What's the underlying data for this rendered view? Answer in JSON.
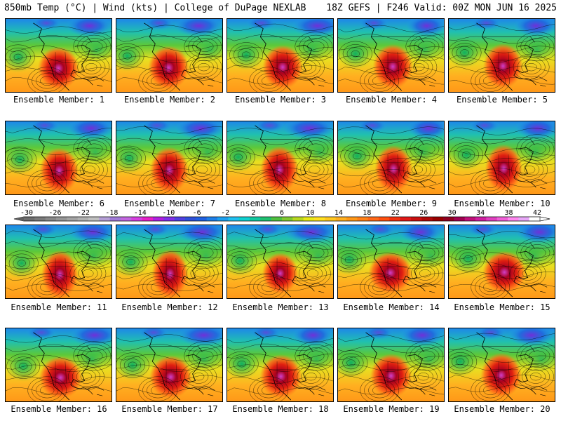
{
  "header": {
    "left": "850mb Temp (°C) | Wind (kts) | College of DuPage NEXLAB",
    "right": "18Z GEFS | F246 Valid: 00Z MON JUN 16 2025"
  },
  "members": [
    {
      "label": "Ensemble Member: 1"
    },
    {
      "label": "Ensemble Member: 2"
    },
    {
      "label": "Ensemble Member: 3"
    },
    {
      "label": "Ensemble Member: 4"
    },
    {
      "label": "Ensemble Member: 5"
    },
    {
      "label": "Ensemble Member: 6"
    },
    {
      "label": "Ensemble Member: 7"
    },
    {
      "label": "Ensemble Member: 8"
    },
    {
      "label": "Ensemble Member: 9"
    },
    {
      "label": "Ensemble Member: 10"
    },
    {
      "label": "Ensemble Member: 11"
    },
    {
      "label": "Ensemble Member: 12"
    },
    {
      "label": "Ensemble Member: 13"
    },
    {
      "label": "Ensemble Member: 14"
    },
    {
      "label": "Ensemble Member: 15"
    },
    {
      "label": "Ensemble Member: 16"
    },
    {
      "label": "Ensemble Member: 17"
    },
    {
      "label": "Ensemble Member: 18"
    },
    {
      "label": "Ensemble Member: 19"
    },
    {
      "label": "Ensemble Member: 20"
    }
  ],
  "colorbar": {
    "labels": [
      "-30",
      "-26",
      "-22",
      "-18",
      "-14",
      "-10",
      "-6",
      "-2",
      "2",
      "6",
      "10",
      "14",
      "18",
      "22",
      "26",
      "30",
      "34",
      "38",
      "42"
    ],
    "colors": [
      "#6e6e6e",
      "#7a7a7a",
      "#888888",
      "#969696",
      "#a4a4a4",
      "#b2b2b2",
      "#c0c0c0",
      "#b59fd6",
      "#a07ad8",
      "#c266e0",
      "#d63fe0",
      "#e620c8",
      "#b020e0",
      "#8030e8",
      "#5040e0",
      "#2f50d8",
      "#2060e0",
      "#1e7fe8",
      "#1ea0f0",
      "#20c0f0",
      "#10d0d0",
      "#10c8a0",
      "#20c070",
      "#50c040",
      "#80c830",
      "#b8d820",
      "#e8e818",
      "#ffe020",
      "#ffc820",
      "#ffb020",
      "#ff9818",
      "#ff8018",
      "#ff6818",
      "#ff5010",
      "#f03010",
      "#e01818",
      "#c81010",
      "#b00808",
      "#980000",
      "#900020",
      "#a00050",
      "#c0107a",
      "#d020a0",
      "#e040c0",
      "#f060d8",
      "#ff88f0",
      "#e8a8f8",
      "#ffffff"
    ]
  }
}
